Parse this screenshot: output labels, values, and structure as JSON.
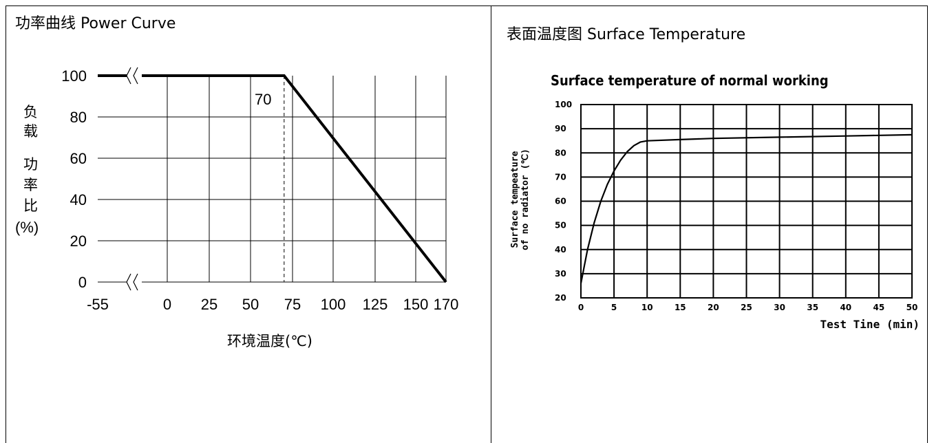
{
  "left_panel": {
    "title": "功率曲线 Power Curve"
  },
  "right_panel": {
    "title": "表面温度图 Surface Temperature"
  },
  "chart_data": [
    {
      "type": "line",
      "title": "",
      "xlabel": "环境温度(℃)",
      "ylabel_chars": [
        "负",
        "载",
        "功",
        "率",
        "比",
        "(%)"
      ],
      "x_ticks": [
        "-55",
        "0",
        "25",
        "50",
        "75",
        "100",
        "125",
        "150",
        "170"
      ],
      "y_ticks": [
        "0",
        "20",
        "40",
        "60",
        "80",
        "100"
      ],
      "ylim": [
        0,
        100
      ],
      "annotation": "70",
      "grid": true,
      "series": [
        {
          "x": [
            -55,
            70,
            170
          ],
          "y": [
            100,
            100,
            0
          ]
        }
      ]
    },
    {
      "type": "line",
      "title": "Surface temperature of normal working",
      "xlabel": "Test Tine (min)",
      "ylabel_lines": [
        "Surface tempeature",
        "of no radiator (℃)"
      ],
      "x_ticks": [
        "0",
        "5",
        "10",
        "15",
        "20",
        "25",
        "30",
        "35",
        "40",
        "45",
        "50"
      ],
      "y_ticks": [
        "20",
        "30",
        "40",
        "50",
        "60",
        "70",
        "80",
        "90",
        "100"
      ],
      "xlim": [
        0,
        50
      ],
      "ylim": [
        20,
        100
      ],
      "grid": true,
      "series": [
        {
          "x": [
            0,
            1,
            2,
            3,
            4,
            5,
            6,
            7,
            8,
            9,
            10,
            15,
            20,
            30,
            40,
            50
          ],
          "y": [
            26,
            40,
            51,
            60,
            67,
            72.5,
            77,
            80.5,
            83,
            84.5,
            85,
            85.5,
            86,
            86.5,
            87,
            87.5
          ]
        }
      ]
    }
  ]
}
